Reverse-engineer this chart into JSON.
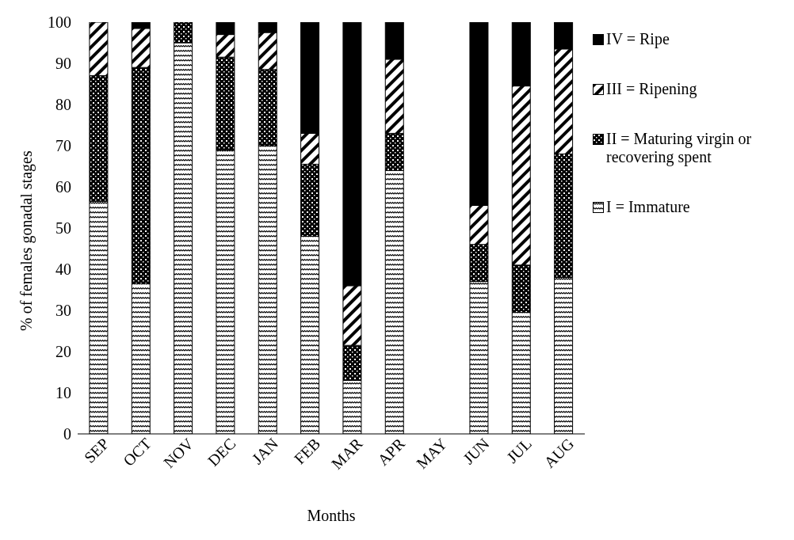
{
  "chart_data": {
    "type": "bar",
    "stacked": true,
    "xlabel": "Months",
    "ylabel": "% of females gonadal stages",
    "categories": [
      "SEP",
      "OCT",
      "NOV",
      "DEC",
      "JAN",
      "FEB",
      "MAR",
      "APR",
      "MAY",
      "JUN",
      "JUL",
      "AUG"
    ],
    "series": [
      {
        "name": "I = Immature",
        "color": "#000000",
        "values": [
          56.5,
          36.5,
          95,
          69,
          70,
          48,
          13,
          64,
          null,
          37,
          29.5,
          38
        ]
      },
      {
        "name": "II = Maturing virgin or recovering spent",
        "color": "#000000",
        "values": [
          30.5,
          52.5,
          5,
          22.5,
          18.5,
          17.5,
          8.5,
          9,
          null,
          9,
          11.5,
          30
        ]
      },
      {
        "name": "III = Ripening",
        "color": "#000000",
        "values": [
          13,
          9.5,
          0,
          5.5,
          9,
          7.5,
          14.5,
          18,
          null,
          9.5,
          43.5,
          25.5
        ]
      },
      {
        "name": "IV = Ripe",
        "color": "#000000",
        "values": [
          0,
          1.5,
          0,
          3,
          2.5,
          27,
          64,
          9,
          null,
          44.5,
          15.5,
          6.5
        ]
      }
    ],
    "ylim": [
      0,
      100
    ],
    "yticks": [
      0,
      10,
      20,
      30,
      40,
      50,
      60,
      70,
      80,
      90,
      100
    ],
    "grid": false,
    "legend": "right"
  }
}
